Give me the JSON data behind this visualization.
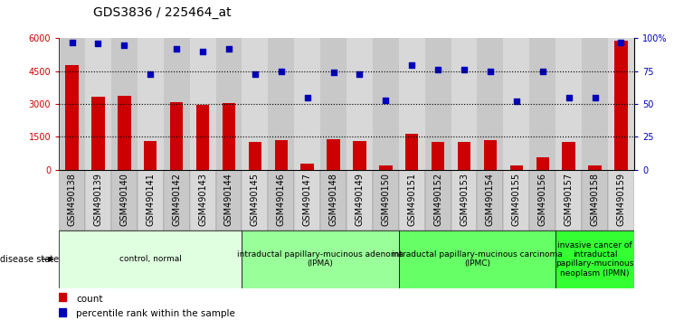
{
  "title": "GDS3836 / 225464_at",
  "samples": [
    "GSM490138",
    "GSM490139",
    "GSM490140",
    "GSM490141",
    "GSM490142",
    "GSM490143",
    "GSM490144",
    "GSM490145",
    "GSM490146",
    "GSM490147",
    "GSM490148",
    "GSM490149",
    "GSM490150",
    "GSM490151",
    "GSM490152",
    "GSM490153",
    "GSM490154",
    "GSM490155",
    "GSM490156",
    "GSM490157",
    "GSM490158",
    "GSM490159"
  ],
  "counts": [
    4800,
    3350,
    3380,
    1300,
    3100,
    2950,
    3050,
    1250,
    1350,
    280,
    1400,
    1300,
    180,
    1650,
    1250,
    1250,
    1350,
    200,
    550,
    1250,
    200,
    5900
  ],
  "percentiles": [
    97,
    96,
    95,
    73,
    92,
    90,
    92,
    73,
    75,
    55,
    74,
    73,
    53,
    80,
    76,
    76,
    75,
    52,
    75,
    55,
    55,
    97
  ],
  "bar_color": "#cc0000",
  "dot_color": "#0000bb",
  "ylim_left": [
    0,
    6000
  ],
  "ylim_right": [
    0,
    100
  ],
  "yticks_left": [
    0,
    1500,
    3000,
    4500,
    6000
  ],
  "ytick_labels_left": [
    "0",
    "1500",
    "3000",
    "4500",
    "6000"
  ],
  "yticks_right": [
    0,
    25,
    50,
    75,
    100
  ],
  "ytick_labels_right": [
    "0",
    "25",
    "50",
    "75",
    "100%"
  ],
  "hlines": [
    1500,
    3000,
    4500
  ],
  "groups": [
    {
      "label": "control, normal",
      "start": 0,
      "end": 7,
      "color": "#e0ffe0"
    },
    {
      "label": "intraductal papillary-mucinous adenoma\n(IPMA)",
      "start": 7,
      "end": 13,
      "color": "#99ff99"
    },
    {
      "label": "intraductal papillary-mucinous carcinoma\n(IPMC)",
      "start": 13,
      "end": 19,
      "color": "#66ff66"
    },
    {
      "label": "invasive cancer of\nintraductal\npapillary-mucinous\nneoplasm (IPMN)",
      "start": 19,
      "end": 22,
      "color": "#33ff33"
    }
  ],
  "disease_state_label": "disease state",
  "legend_count_label": "count",
  "legend_pct_label": "percentile rank within the sample",
  "bg_color": "#cccccc",
  "plot_bg_color": "#ffffff",
  "title_fontsize": 10,
  "tick_fontsize": 7,
  "label_fontsize": 7.5,
  "group_fontsize": 6.5
}
